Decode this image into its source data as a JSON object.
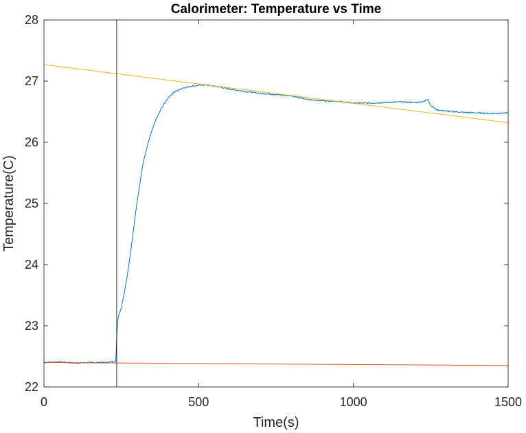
{
  "chart_data": {
    "type": "line",
    "title": "Calorimeter: Temperature vs Time",
    "xlabel": "Time(s)",
    "ylabel": "Temperature(C)",
    "xlim": [
      0,
      1500
    ],
    "ylim": [
      22,
      28
    ],
    "xticks": [
      "0",
      "500",
      "1000",
      "1500"
    ],
    "yticks": [
      "22",
      "23",
      "24",
      "25",
      "26",
      "27",
      "28"
    ],
    "grid": false,
    "series": [
      {
        "color": "#0072BD",
        "x": [
          0,
          50,
          100,
          150,
          200,
          232,
          236,
          240,
          245,
          250,
          260,
          270,
          280,
          290,
          300,
          320,
          340,
          360,
          380,
          400,
          420,
          450,
          480,
          500,
          520,
          550,
          600,
          650,
          700,
          750,
          800,
          850,
          900,
          950,
          1000,
          1050,
          1100,
          1150,
          1200,
          1230,
          1240,
          1250,
          1270,
          1300,
          1350,
          1400,
          1450,
          1500
        ],
        "y": [
          22.4,
          22.41,
          22.39,
          22.4,
          22.4,
          22.42,
          22.9,
          23.15,
          23.22,
          23.3,
          23.55,
          23.85,
          24.2,
          24.6,
          25.0,
          25.65,
          26.05,
          26.35,
          26.56,
          26.72,
          26.82,
          26.89,
          26.92,
          26.93,
          26.94,
          26.92,
          26.87,
          26.83,
          26.8,
          26.78,
          26.76,
          26.7,
          26.68,
          26.67,
          26.64,
          26.64,
          26.65,
          26.66,
          26.65,
          26.67,
          26.71,
          26.6,
          26.53,
          26.51,
          26.49,
          26.48,
          26.47,
          26.48
        ]
      },
      {
        "color": "#D95319",
        "x": [
          0,
          1500
        ],
        "y": [
          22.4,
          22.35
        ]
      },
      {
        "color": "#EDB120",
        "x": [
          0,
          1500
        ],
        "y": [
          27.27,
          26.32
        ]
      },
      {
        "color": "#000000",
        "x": [
          235,
          235
        ],
        "y": [
          22,
          28
        ]
      }
    ]
  }
}
